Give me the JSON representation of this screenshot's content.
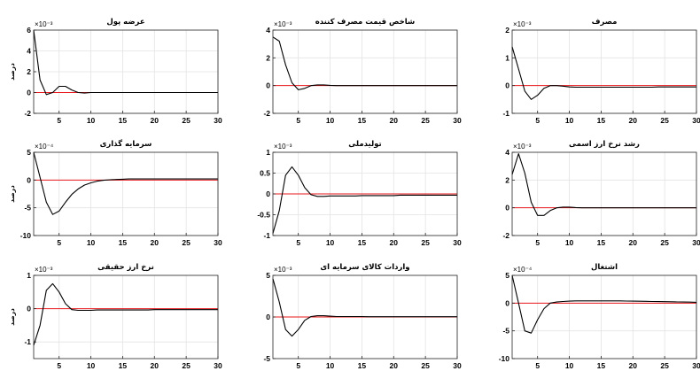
{
  "chart_data": [
    {
      "type": "line",
      "title": "عرضه پول",
      "ylabel": "درصد",
      "exponent": "×10⁻³",
      "xlim": [
        1,
        30
      ],
      "ylim": [
        -2,
        6
      ],
      "yticks": [
        -2,
        0,
        2,
        4,
        6
      ],
      "xticks": [
        5,
        10,
        15,
        20,
        25,
        30
      ],
      "x": [
        1,
        2,
        3,
        4,
        5,
        6,
        7,
        8,
        9,
        10,
        11,
        12,
        13,
        14,
        15,
        16,
        17,
        18,
        19,
        20,
        21,
        22,
        23,
        24,
        25,
        26,
        27,
        28,
        29,
        30
      ],
      "series": [
        {
          "values": [
            6.0,
            1.2,
            -0.2,
            0.0,
            0.6,
            0.6,
            0.25,
            0.0,
            -0.05,
            0,
            0,
            0,
            0,
            0,
            0,
            0,
            0,
            0,
            0,
            0,
            0,
            0,
            0,
            0,
            0,
            0,
            0,
            0,
            0,
            0
          ]
        }
      ]
    },
    {
      "type": "line",
      "title": "شاخص قیمت مصرف کننده",
      "ylabel": "",
      "exponent": "×10⁻³",
      "xlim": [
        1,
        30
      ],
      "ylim": [
        -2,
        4
      ],
      "yticks": [
        -2,
        0,
        2,
        4
      ],
      "xticks": [
        5,
        10,
        15,
        20,
        25,
        30
      ],
      "x": [
        1,
        2,
        3,
        4,
        5,
        6,
        7,
        8,
        9,
        10,
        11,
        12,
        13,
        14,
        15,
        16,
        17,
        18,
        19,
        20,
        21,
        22,
        23,
        24,
        25,
        26,
        27,
        28,
        29,
        30
      ],
      "series": [
        {
          "values": [
            3.5,
            3.2,
            1.5,
            0.2,
            -0.3,
            -0.2,
            0.0,
            0.05,
            0.05,
            0.02,
            0,
            0,
            0,
            0,
            0,
            0,
            0,
            0,
            0,
            0,
            0,
            0,
            0,
            0,
            0,
            0,
            0,
            0,
            0,
            0
          ]
        }
      ]
    },
    {
      "type": "line",
      "title": "مصرف",
      "ylabel": "",
      "exponent": "×10⁻³",
      "xlim": [
        1,
        30
      ],
      "ylim": [
        -1,
        2
      ],
      "yticks": [
        -1,
        0,
        1,
        2
      ],
      "xticks": [
        5,
        10,
        15,
        20,
        25,
        30
      ],
      "x": [
        1,
        2,
        3,
        4,
        5,
        6,
        7,
        8,
        9,
        10,
        11,
        12,
        13,
        14,
        15,
        16,
        17,
        18,
        19,
        20,
        21,
        22,
        23,
        24,
        25,
        26,
        27,
        28,
        29,
        30
      ],
      "series": [
        {
          "values": [
            1.4,
            0.6,
            -0.2,
            -0.5,
            -0.35,
            -0.1,
            0.0,
            0.0,
            -0.02,
            -0.05,
            -0.06,
            -0.06,
            -0.06,
            -0.06,
            -0.06,
            -0.06,
            -0.06,
            -0.06,
            -0.06,
            -0.06,
            -0.06,
            -0.06,
            -0.06,
            -0.05,
            -0.05,
            -0.05,
            -0.05,
            -0.05,
            -0.05,
            -0.05
          ]
        }
      ]
    },
    {
      "type": "line",
      "title": "سرمایه گذاری",
      "ylabel": "درصد",
      "exponent": "×10⁻⁴",
      "xlim": [
        1,
        30
      ],
      "ylim": [
        -10,
        5
      ],
      "yticks": [
        -10,
        -5,
        0,
        5
      ],
      "xticks": [
        5,
        10,
        15,
        20,
        25,
        30
      ],
      "x": [
        1,
        2,
        3,
        4,
        5,
        6,
        7,
        8,
        9,
        10,
        11,
        12,
        13,
        14,
        15,
        16,
        17,
        18,
        19,
        20,
        21,
        22,
        23,
        24,
        25,
        26,
        27,
        28,
        29,
        30
      ],
      "series": [
        {
          "values": [
            5.0,
            0.5,
            -4.0,
            -6.2,
            -5.6,
            -4.0,
            -2.6,
            -1.6,
            -0.9,
            -0.5,
            -0.2,
            -0.05,
            0.05,
            0.1,
            0.15,
            0.2,
            0.2,
            0.2,
            0.2,
            0.2,
            0.2,
            0.2,
            0.2,
            0.2,
            0.2,
            0.2,
            0.2,
            0.2,
            0.2,
            0.2
          ]
        }
      ]
    },
    {
      "type": "line",
      "title": "تولیدملی",
      "ylabel": "",
      "exponent": "×10⁻³",
      "xlim": [
        1,
        30
      ],
      "ylim": [
        -1,
        1
      ],
      "yticks": [
        -1,
        -0.5,
        0,
        0.5,
        1
      ],
      "xticks": [
        5,
        10,
        15,
        20,
        25,
        30
      ],
      "x": [
        1,
        2,
        3,
        4,
        5,
        6,
        7,
        8,
        9,
        10,
        11,
        12,
        13,
        14,
        15,
        16,
        17,
        18,
        19,
        20,
        21,
        22,
        23,
        24,
        25,
        26,
        27,
        28,
        29,
        30
      ],
      "series": [
        {
          "values": [
            -0.95,
            -0.4,
            0.45,
            0.65,
            0.45,
            0.15,
            -0.02,
            -0.06,
            -0.06,
            -0.05,
            -0.05,
            -0.05,
            -0.05,
            -0.05,
            -0.04,
            -0.04,
            -0.04,
            -0.04,
            -0.04,
            -0.04,
            -0.03,
            -0.03,
            -0.03,
            -0.03,
            -0.03,
            -0.03,
            -0.03,
            -0.03,
            -0.03,
            -0.03
          ]
        }
      ]
    },
    {
      "type": "line",
      "title": "رشد نرخ ارز اسمی",
      "ylabel": "",
      "exponent": "×10⁻³",
      "xlim": [
        1,
        30
      ],
      "ylim": [
        -2,
        4
      ],
      "yticks": [
        -2,
        0,
        2,
        4
      ],
      "xticks": [
        5,
        10,
        15,
        20,
        25,
        30
      ],
      "x": [
        1,
        2,
        3,
        4,
        5,
        6,
        7,
        8,
        9,
        10,
        11,
        12,
        13,
        14,
        15,
        16,
        17,
        18,
        19,
        20,
        21,
        22,
        23,
        24,
        25,
        26,
        27,
        28,
        29,
        30
      ],
      "series": [
        {
          "values": [
            2.4,
            3.9,
            2.5,
            0.4,
            -0.55,
            -0.55,
            -0.2,
            0.0,
            0.05,
            0.05,
            0.02,
            0,
            0,
            0,
            0,
            0,
            0,
            0,
            0,
            0,
            0,
            0,
            0,
            0,
            0,
            0,
            0,
            0,
            0,
            0
          ]
        }
      ]
    },
    {
      "type": "line",
      "title": "نرخ ارز حقیقی",
      "ylabel": "درصد",
      "exponent": "×10⁻³",
      "xlim": [
        1,
        30
      ],
      "ylim": [
        -1.5,
        1
      ],
      "yticks": [
        -1,
        0,
        1
      ],
      "xticks": [
        5,
        10,
        15,
        20,
        25,
        30
      ],
      "x": [
        1,
        2,
        3,
        4,
        5,
        6,
        7,
        8,
        9,
        10,
        11,
        12,
        13,
        14,
        15,
        16,
        17,
        18,
        19,
        20,
        21,
        22,
        23,
        24,
        25,
        26,
        27,
        28,
        29,
        30
      ],
      "series": [
        {
          "values": [
            -1.1,
            -0.5,
            0.55,
            0.75,
            0.5,
            0.15,
            -0.03,
            -0.05,
            -0.05,
            -0.05,
            -0.04,
            -0.04,
            -0.04,
            -0.04,
            -0.04,
            -0.04,
            -0.04,
            -0.04,
            -0.04,
            -0.03,
            -0.03,
            -0.03,
            -0.03,
            -0.03,
            -0.03,
            -0.03,
            -0.03,
            -0.03,
            -0.03,
            -0.03
          ]
        }
      ]
    },
    {
      "type": "line",
      "title": "واردات کالای سرمایه ای",
      "ylabel": "",
      "exponent": "×10⁻³",
      "xlim": [
        1,
        30
      ],
      "ylim": [
        -5,
        5
      ],
      "yticks": [
        -5,
        0,
        5
      ],
      "xticks": [
        5,
        10,
        15,
        20,
        25,
        30
      ],
      "x": [
        1,
        2,
        3,
        4,
        5,
        6,
        7,
        8,
        9,
        10,
        11,
        12,
        13,
        14,
        15,
        16,
        17,
        18,
        19,
        20,
        21,
        22,
        23,
        24,
        25,
        26,
        27,
        28,
        29,
        30
      ],
      "series": [
        {
          "values": [
            4.6,
            1.8,
            -1.5,
            -2.3,
            -1.5,
            -0.4,
            0.05,
            0.15,
            0.15,
            0.1,
            0.05,
            0.05,
            0.05,
            0.05,
            0.05,
            0.03,
            0.03,
            0.03,
            0.03,
            0.03,
            0.03,
            0.03,
            0.03,
            0.03,
            0.03,
            0.03,
            0.03,
            0.03,
            0.03,
            0.03
          ]
        }
      ]
    },
    {
      "type": "line",
      "title": "اشتغال",
      "ylabel": "",
      "exponent": "×10⁻⁴",
      "xlim": [
        1,
        30
      ],
      "ylim": [
        -10,
        5
      ],
      "yticks": [
        -10,
        -5,
        0,
        5
      ],
      "xticks": [
        5,
        10,
        15,
        20,
        25,
        30
      ],
      "x": [
        1,
        2,
        3,
        4,
        5,
        6,
        7,
        8,
        9,
        10,
        11,
        12,
        13,
        14,
        15,
        16,
        17,
        18,
        19,
        20,
        21,
        22,
        23,
        24,
        25,
        26,
        27,
        28,
        29,
        30
      ],
      "series": [
        {
          "values": [
            5.0,
            0.0,
            -5.0,
            -5.4,
            -3.0,
            -1.0,
            0.0,
            0.2,
            0.3,
            0.35,
            0.4,
            0.4,
            0.4,
            0.4,
            0.4,
            0.4,
            0.4,
            0.4,
            0.38,
            0.36,
            0.34,
            0.32,
            0.3,
            0.28,
            0.26,
            0.24,
            0.22,
            0.2,
            0.18,
            0.15
          ]
        }
      ]
    }
  ],
  "colors": {
    "response": "#000000",
    "zero_line": "#e8181c",
    "grid": "#e3e3e3",
    "axis": "#262626"
  }
}
